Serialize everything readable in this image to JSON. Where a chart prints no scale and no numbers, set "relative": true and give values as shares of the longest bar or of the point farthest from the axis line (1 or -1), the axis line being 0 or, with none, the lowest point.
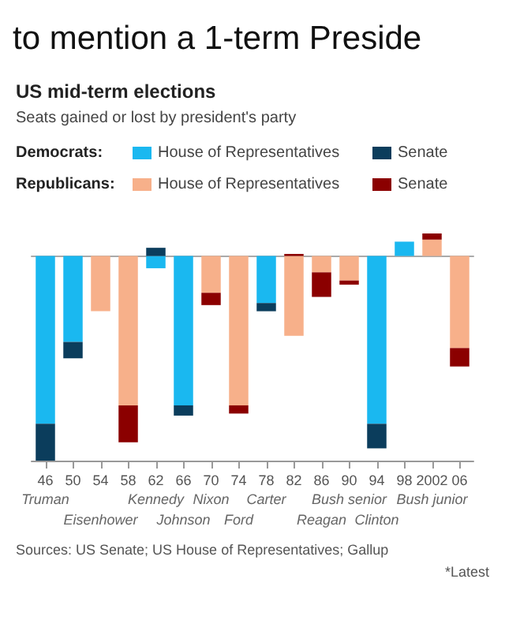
{
  "chart_data": {
    "type": "bar",
    "title": "to mention a 1-term Preside",
    "subtitle": "US mid-term elections",
    "relative": true,
    "stacked": true,
    "legend": "top",
    "categories": [
      "46",
      "50",
      "54",
      "58",
      "62",
      "66",
      "70",
      "74",
      "78",
      "82",
      "86",
      "90",
      "94",
      "98",
      "2002",
      "06"
    ],
    "series": [
      {
        "name": "House of Representatives",
        "color": "#1ab8f0",
        "values": [
          -0.82,
          -0.42,
          null,
          null,
          -0.06,
          -0.73,
          null,
          null,
          -0.23,
          null,
          null,
          null,
          -0.82,
          0.07,
          null,
          null
        ]
      },
      {
        "name": "Senate",
        "color": "#0b3d5c",
        "values": [
          -0.18,
          -0.08,
          null,
          null,
          0.04,
          -0.05,
          null,
          null,
          -0.04,
          null,
          null,
          null,
          -0.12,
          null,
          null,
          null
        ]
      },
      {
        "name": "House of Representatives",
        "color": "#f7b08a",
        "values": [
          null,
          null,
          -0.27,
          -0.73,
          null,
          null,
          -0.18,
          -0.73,
          null,
          -0.39,
          -0.08,
          -0.12,
          null,
          null,
          0.08,
          -0.45
        ]
      },
      {
        "name": "Senate",
        "color": "#8b0000",
        "values": [
          null,
          null,
          null,
          -0.18,
          null,
          null,
          -0.06,
          -0.04,
          null,
          0.01,
          -0.12,
          -0.02,
          null,
          null,
          0.03,
          -0.09
        ]
      }
    ],
    "annotations": [
      "Democrats:",
      "Republicans:",
      "Seats gained or lost by president's party",
      "Sources: US Senate; US House of Representatives; Gallup",
      "*Latest",
      "Truman",
      "Eisenhower",
      "Kennedy",
      "Johnson",
      "Nixon",
      "Ford",
      "Carter",
      "Reagan",
      "Bush senior",
      "Clinton",
      "Bush junior"
    ]
  }
}
